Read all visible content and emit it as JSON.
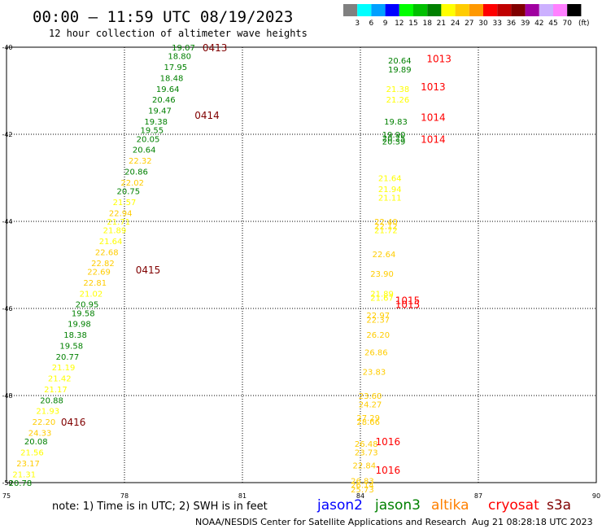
{
  "header": {
    "title": "00:00 – 11:59 UTC 08/19/2023",
    "subtitle": "12 hour collection of altimeter wave heights"
  },
  "legend": {
    "unit": "(ft)",
    "bins": [
      {
        "label": "3",
        "color": "#808080"
      },
      {
        "label": "6",
        "color": "#00ffff"
      },
      {
        "label": "9",
        "color": "#00a0ff"
      },
      {
        "label": "12",
        "color": "#0000ff"
      },
      {
        "label": "15",
        "color": "#00ff00"
      },
      {
        "label": "18",
        "color": "#00c000"
      },
      {
        "label": "21",
        "color": "#008000"
      },
      {
        "label": "24",
        "color": "#ffff00"
      },
      {
        "label": "27",
        "color": "#ffcc00"
      },
      {
        "label": "30",
        "color": "#ff9900"
      },
      {
        "label": "33",
        "color": "#ff0000"
      },
      {
        "label": "36",
        "color": "#c00000"
      },
      {
        "label": "39",
        "color": "#800000"
      },
      {
        "label": "42",
        "color": "#a000a0"
      },
      {
        "label": "45",
        "color": "#ccb0ff"
      },
      {
        "label": "70",
        "color": "#ff80ff"
      },
      {
        "label": "",
        "color": "#000000"
      }
    ]
  },
  "footer": {
    "note": "note: 1) Time is in UTC; 2) SWH is in feet",
    "credit": "NOAA/NESDIS Center for Satellite Applications and Research",
    "timestamp": "Aug 21 08:28:18 UTC 2023",
    "satellites": [
      {
        "name": "jason2",
        "color": "#0000ff"
      },
      {
        "name": "jason3",
        "color": "#008000"
      },
      {
        "name": "altika",
        "color": "#ff8000"
      },
      {
        "name": "cryosat",
        "color": "#ff0000"
      },
      {
        "name": "s3a",
        "color": "#800000"
      }
    ]
  },
  "chart_data": {
    "type": "scatter",
    "xlim": [
      75,
      90
    ],
    "ylim": [
      -50,
      -40
    ],
    "x_ticks": [
      75,
      78,
      81,
      84,
      87,
      90
    ],
    "y_ticks": [
      -40,
      -42,
      -44,
      -46,
      -48,
      -50
    ],
    "grid": true,
    "time_labels": [
      {
        "text": "0413",
        "x": 80.3,
        "y": -40.0,
        "color": "#800000"
      },
      {
        "text": "0414",
        "x": 80.1,
        "y": -41.55,
        "color": "#800000"
      },
      {
        "text": "0415",
        "x": 78.6,
        "y": -45.1,
        "color": "#800000"
      },
      {
        "text": "0416",
        "x": 76.7,
        "y": -48.6,
        "color": "#800000"
      },
      {
        "text": "1013",
        "x": 86.0,
        "y": -40.25,
        "color": "#ff0000"
      },
      {
        "text": "1013",
        "x": 85.85,
        "y": -40.9,
        "color": "#ff0000"
      },
      {
        "text": "1014",
        "x": 85.85,
        "y": -41.6,
        "color": "#ff0000"
      },
      {
        "text": "1014",
        "x": 85.85,
        "y": -42.1,
        "color": "#ff0000"
      },
      {
        "text": "1015",
        "x": 85.2,
        "y": -45.8,
        "color": "#ff0000"
      },
      {
        "text": "1015",
        "x": 85.2,
        "y": -45.9,
        "color": "#ff0000"
      },
      {
        "text": "1016",
        "x": 84.7,
        "y": -49.05,
        "color": "#ff0000"
      },
      {
        "text": "1016",
        "x": 84.7,
        "y": -49.7,
        "color": "#ff0000"
      }
    ],
    "points": [
      {
        "text": "19.07",
        "x": 79.5,
        "y": -40.0,
        "color": "#008000"
      },
      {
        "text": "18.80",
        "x": 79.4,
        "y": -40.2,
        "color": "#008000"
      },
      {
        "text": "17.95",
        "x": 79.3,
        "y": -40.45,
        "color": "#008000"
      },
      {
        "text": "18.48",
        "x": 79.2,
        "y": -40.7,
        "color": "#008000"
      },
      {
        "text": "19.64",
        "x": 79.1,
        "y": -40.95,
        "color": "#008000"
      },
      {
        "text": "20.46",
        "x": 79.0,
        "y": -41.2,
        "color": "#008000"
      },
      {
        "text": "19.47",
        "x": 78.9,
        "y": -41.45,
        "color": "#008000"
      },
      {
        "text": "19.38",
        "x": 78.8,
        "y": -41.7,
        "color": "#008000"
      },
      {
        "text": "19.55",
        "x": 78.7,
        "y": -41.9,
        "color": "#008000"
      },
      {
        "text": "20.05",
        "x": 78.6,
        "y": -42.1,
        "color": "#008000"
      },
      {
        "text": "20.64",
        "x": 78.5,
        "y": -42.35,
        "color": "#008000"
      },
      {
        "text": "22.32",
        "x": 78.4,
        "y": -42.6,
        "color": "#ffcc00"
      },
      {
        "text": "20.86",
        "x": 78.3,
        "y": -42.85,
        "color": "#008000"
      },
      {
        "text": "22.02",
        "x": 78.2,
        "y": -43.1,
        "color": "#ffcc00"
      },
      {
        "text": "20.75",
        "x": 78.1,
        "y": -43.3,
        "color": "#008000"
      },
      {
        "text": "21.57",
        "x": 78.0,
        "y": -43.55,
        "color": "#ffff00"
      },
      {
        "text": "22.94",
        "x": 77.9,
        "y": -43.8,
        "color": "#ffcc00"
      },
      {
        "text": "21.71",
        "x": 77.85,
        "y": -44.0,
        "color": "#ffff00"
      },
      {
        "text": "21.89",
        "x": 77.75,
        "y": -44.2,
        "color": "#ffff00"
      },
      {
        "text": "21.64",
        "x": 77.65,
        "y": -44.45,
        "color": "#ffff00"
      },
      {
        "text": "22.68",
        "x": 77.55,
        "y": -44.7,
        "color": "#ffcc00"
      },
      {
        "text": "22.82",
        "x": 77.45,
        "y": -44.95,
        "color": "#ffcc00"
      },
      {
        "text": "22.69",
        "x": 77.35,
        "y": -45.15,
        "color": "#ffcc00"
      },
      {
        "text": "22.81",
        "x": 77.25,
        "y": -45.4,
        "color": "#ffcc00"
      },
      {
        "text": "21.02",
        "x": 77.15,
        "y": -45.65,
        "color": "#ffff00"
      },
      {
        "text": "20.95",
        "x": 77.05,
        "y": -45.9,
        "color": "#008000"
      },
      {
        "text": "19.58",
        "x": 76.95,
        "y": -46.1,
        "color": "#008000"
      },
      {
        "text": "19.98",
        "x": 76.85,
        "y": -46.35,
        "color": "#008000"
      },
      {
        "text": "18.38",
        "x": 76.75,
        "y": -46.6,
        "color": "#008000"
      },
      {
        "text": "19.58",
        "x": 76.65,
        "y": -46.85,
        "color": "#008000"
      },
      {
        "text": "20.77",
        "x": 76.55,
        "y": -47.1,
        "color": "#008000"
      },
      {
        "text": "21.19",
        "x": 76.45,
        "y": -47.35,
        "color": "#ffff00"
      },
      {
        "text": "21.42",
        "x": 76.35,
        "y": -47.6,
        "color": "#ffff00"
      },
      {
        "text": "21.17",
        "x": 76.25,
        "y": -47.85,
        "color": "#ffff00"
      },
      {
        "text": "20.88",
        "x": 76.15,
        "y": -48.1,
        "color": "#008000"
      },
      {
        "text": "21.93",
        "x": 76.05,
        "y": -48.35,
        "color": "#ffff00"
      },
      {
        "text": "22.20",
        "x": 75.95,
        "y": -48.6,
        "color": "#ffcc00"
      },
      {
        "text": "24.33",
        "x": 75.85,
        "y": -48.85,
        "color": "#ffcc00"
      },
      {
        "text": "20.08",
        "x": 75.75,
        "y": -49.05,
        "color": "#008000"
      },
      {
        "text": "21.56",
        "x": 75.65,
        "y": -49.3,
        "color": "#ffff00"
      },
      {
        "text": "23.17",
        "x": 75.55,
        "y": -49.55,
        "color": "#ffcc00"
      },
      {
        "text": "21.31",
        "x": 75.45,
        "y": -49.8,
        "color": "#ffff00"
      },
      {
        "text": "20.78",
        "x": 75.35,
        "y": -50.0,
        "color": "#008000"
      },
      {
        "text": "20.64",
        "x": 85.0,
        "y": -40.3,
        "color": "#008000"
      },
      {
        "text": "19.89",
        "x": 85.0,
        "y": -40.5,
        "color": "#008000"
      },
      {
        "text": "21.38",
        "x": 84.95,
        "y": -40.95,
        "color": "#ffff00"
      },
      {
        "text": "21.26",
        "x": 84.95,
        "y": -41.2,
        "color": "#ffff00"
      },
      {
        "text": "19.83",
        "x": 84.9,
        "y": -41.7,
        "color": "#008000"
      },
      {
        "text": "19.90",
        "x": 84.85,
        "y": -42.0,
        "color": "#008000"
      },
      {
        "text": "20.25",
        "x": 84.85,
        "y": -42.08,
        "color": "#008000"
      },
      {
        "text": "20.39",
        "x": 84.85,
        "y": -42.16,
        "color": "#008000"
      },
      {
        "text": "21.64",
        "x": 84.75,
        "y": -43.0,
        "color": "#ffff00"
      },
      {
        "text": "21.94",
        "x": 84.75,
        "y": -43.25,
        "color": "#ffff00"
      },
      {
        "text": "21.11",
        "x": 84.75,
        "y": -43.45,
        "color": "#ffff00"
      },
      {
        "text": "22.40",
        "x": 84.65,
        "y": -44.0,
        "color": "#ffcc00"
      },
      {
        "text": "22.12",
        "x": 84.65,
        "y": -44.1,
        "color": "#ffcc00"
      },
      {
        "text": "21.72",
        "x": 84.65,
        "y": -44.2,
        "color": "#ffff00"
      },
      {
        "text": "22.64",
        "x": 84.6,
        "y": -44.75,
        "color": "#ffcc00"
      },
      {
        "text": "23.90",
        "x": 84.55,
        "y": -45.2,
        "color": "#ffcc00"
      },
      {
        "text": "21.89",
        "x": 84.55,
        "y": -45.65,
        "color": "#ffff00"
      },
      {
        "text": "21.67",
        "x": 84.55,
        "y": -45.75,
        "color": "#ffff00"
      },
      {
        "text": "22.97",
        "x": 84.45,
        "y": -46.15,
        "color": "#ffcc00"
      },
      {
        "text": "22.37",
        "x": 84.45,
        "y": -46.25,
        "color": "#ffcc00"
      },
      {
        "text": "26.20",
        "x": 84.45,
        "y": -46.6,
        "color": "#ffcc00"
      },
      {
        "text": "26.86",
        "x": 84.4,
        "y": -47.0,
        "color": "#ffcc00"
      },
      {
        "text": "23.83",
        "x": 84.35,
        "y": -47.45,
        "color": "#ffcc00"
      },
      {
        "text": "23.60",
        "x": 84.25,
        "y": -48.0,
        "color": "#ffcc00"
      },
      {
        "text": "24.27",
        "x": 84.25,
        "y": -48.2,
        "color": "#ffcc00"
      },
      {
        "text": "27.29",
        "x": 84.2,
        "y": -48.5,
        "color": "#ffcc00"
      },
      {
        "text": "28.66",
        "x": 84.2,
        "y": -48.6,
        "color": "#ffcc00"
      },
      {
        "text": "26.48",
        "x": 84.15,
        "y": -49.1,
        "color": "#ffcc00"
      },
      {
        "text": "23.73",
        "x": 84.15,
        "y": -49.3,
        "color": "#ffcc00"
      },
      {
        "text": "22.84",
        "x": 84.1,
        "y": -49.6,
        "color": "#ffcc00"
      },
      {
        "text": "26.83",
        "x": 84.05,
        "y": -49.95,
        "color": "#ffcc00"
      },
      {
        "text": "26.14",
        "x": 84.05,
        "y": -50.05,
        "color": "#ffcc00"
      },
      {
        "text": "25.73",
        "x": 84.05,
        "y": -50.15,
        "color": "#ffcc00"
      }
    ]
  }
}
